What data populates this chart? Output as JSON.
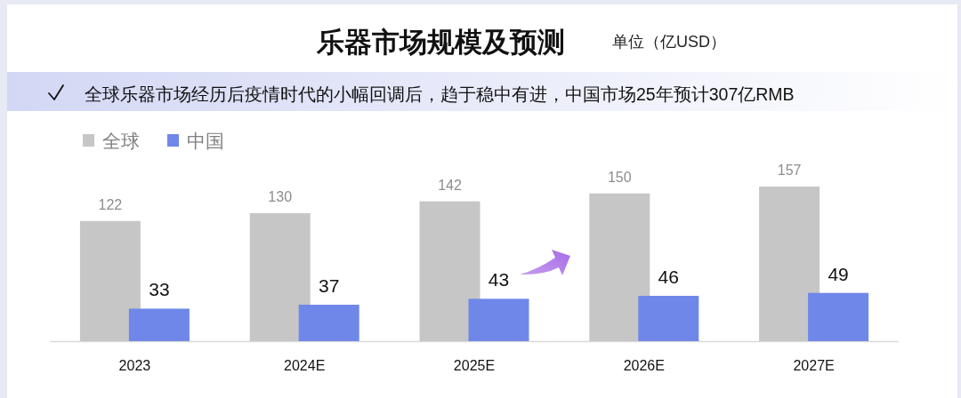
{
  "chart_data": {
    "type": "bar",
    "title": "乐器市场规模及预测",
    "subtitle": "单位（亿USD）",
    "annotations": [
      "全球乐器市场经历后疫情时代的小幅回调后，趋于稳中有进，中国市场25年预计307亿RMB"
    ],
    "categories": [
      "2023",
      "2024E",
      "2025E",
      "2026E",
      "2027E"
    ],
    "series": [
      {
        "name": "全球",
        "color": "#c6c6c6",
        "values": [
          122,
          130,
          142,
          150,
          157
        ]
      },
      {
        "name": "中国",
        "color": "#6f87e8",
        "values": [
          33,
          37,
          43,
          46,
          49
        ]
      }
    ],
    "data_labels": true,
    "legend": "top left"
  }
}
